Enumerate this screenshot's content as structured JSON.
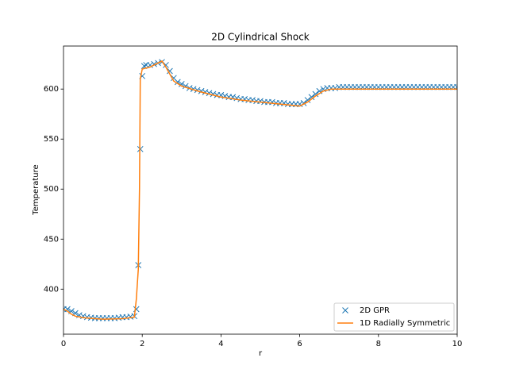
{
  "chart_data": {
    "type": "line",
    "title": "2D Cylindrical Shock",
    "xlabel": "r",
    "ylabel": "Temperature",
    "xlim": [
      0,
      10
    ],
    "xticks": [
      0,
      2,
      4,
      6,
      8,
      10
    ],
    "ylim": [
      355,
      643
    ],
    "yticks": [
      400,
      450,
      500,
      550,
      600
    ],
    "legend": "lower right",
    "series": [
      {
        "name": "2D GPR",
        "color": "#1f77b4",
        "style": "marker",
        "x": [
          0,
          0.1,
          0.2,
          0.3,
          0.4,
          0.5,
          0.6,
          0.7,
          0.8,
          0.9,
          1.0,
          1.1,
          1.2,
          1.3,
          1.4,
          1.5,
          1.6,
          1.7,
          1.8,
          1.85,
          1.9,
          1.95,
          2.0,
          2.05,
          2.1,
          2.2,
          2.3,
          2.4,
          2.5,
          2.6,
          2.7,
          2.8,
          2.9,
          3.0,
          3.1,
          3.2,
          3.3,
          3.4,
          3.5,
          3.6,
          3.7,
          3.8,
          3.9,
          4.0,
          4.1,
          4.2,
          4.3,
          4.4,
          4.5,
          4.6,
          4.7,
          4.8,
          4.9,
          5.0,
          5.1,
          5.2,
          5.3,
          5.4,
          5.5,
          5.6,
          5.7,
          5.8,
          5.9,
          6.0,
          6.1,
          6.2,
          6.3,
          6.4,
          6.5,
          6.6,
          6.7,
          6.8,
          6.9,
          7.0,
          7.1,
          7.2,
          7.3,
          7.4,
          7.5,
          7.6,
          7.7,
          7.8,
          7.9,
          8.0,
          8.1,
          8.2,
          8.3,
          8.4,
          8.5,
          8.6,
          8.7,
          8.8,
          8.9,
          9.0,
          9.1,
          9.2,
          9.3,
          9.4,
          9.5,
          9.6,
          9.7,
          9.8,
          9.9,
          10.0
        ],
        "values": [
          380,
          380,
          378,
          376,
          374,
          373,
          372,
          371.5,
          371,
          371,
          371,
          371,
          371,
          371,
          371.5,
          372,
          372,
          372.5,
          373,
          380,
          424,
          540,
          613,
          623,
          624,
          624,
          625,
          626,
          627,
          624,
          618,
          611,
          607,
          605,
          603,
          601,
          600,
          599,
          598,
          597,
          596,
          595,
          594,
          594,
          593,
          592,
          592,
          591,
          590,
          590,
          589,
          589,
          588,
          588,
          587,
          587,
          587,
          586,
          586,
          586,
          585,
          585,
          585,
          585,
          586,
          589,
          592,
          595,
          598,
          600,
          601,
          601,
          601,
          602,
          602,
          602,
          602,
          602,
          602,
          602,
          602,
          602,
          602,
          602,
          602,
          602,
          602,
          602,
          602,
          602,
          602,
          602,
          602,
          602,
          602,
          602,
          602,
          602,
          602,
          602,
          602,
          602,
          602,
          602
        ]
      },
      {
        "name": "1D Radially Symmetric",
        "color": "#ff7f0e",
        "style": "line",
        "x": [
          0,
          0.1,
          0.2,
          0.3,
          0.5,
          0.8,
          1.0,
          1.5,
          1.8,
          1.85,
          1.9,
          1.93,
          1.95,
          2.0,
          2.2,
          2.4,
          2.5,
          2.6,
          2.8,
          3.0,
          3.5,
          4.0,
          4.5,
          5.0,
          5.5,
          6.0,
          6.2,
          6.4,
          6.6,
          6.8,
          7.0,
          8.0,
          10.0
        ],
        "values": [
          380,
          378,
          375,
          373,
          371.5,
          370.5,
          370,
          370.5,
          372,
          390,
          420,
          500,
          610,
          620,
          622,
          626,
          628,
          622,
          608,
          603,
          597,
          592,
          589,
          587,
          585,
          583,
          587,
          593,
          598,
          600,
          600,
          600,
          600
        ]
      }
    ]
  }
}
